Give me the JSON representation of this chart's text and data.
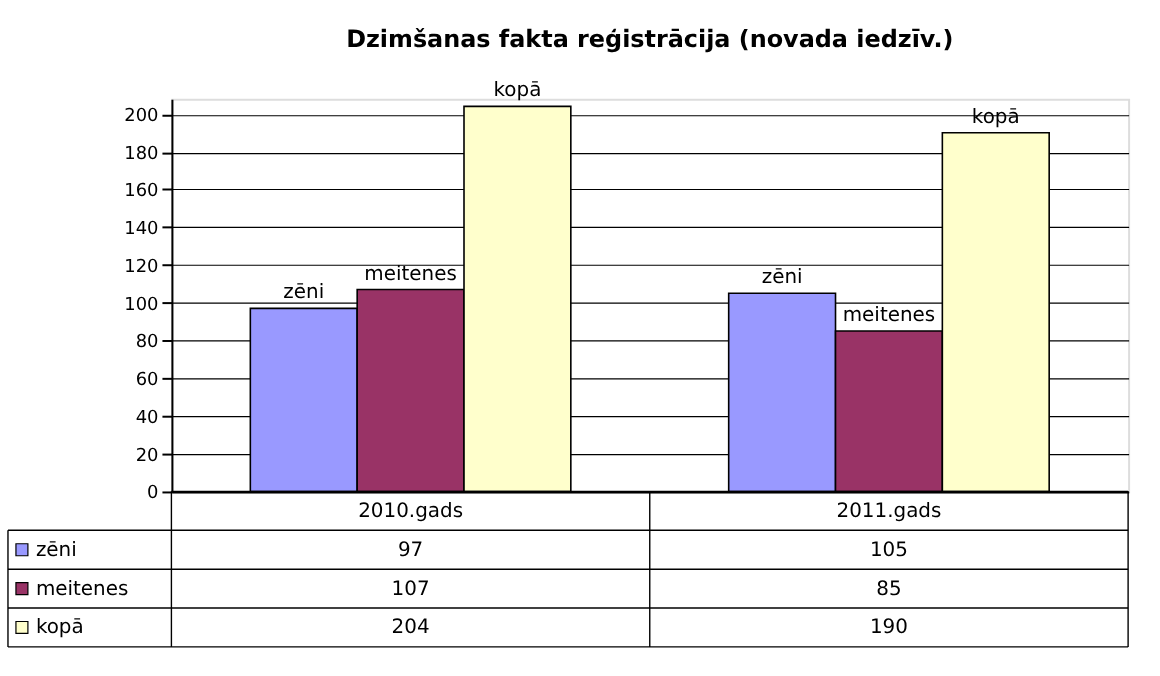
{
  "chart_data": {
    "type": "bar",
    "title": "Dzimšanas fakta reģistrācija (novada iedzīv.)",
    "categories": [
      "2010.gads",
      "2011.gads"
    ],
    "series": [
      {
        "name": "zēni",
        "color": "#9999ff",
        "values": [
          97,
          105
        ]
      },
      {
        "name": "meitenes",
        "color": "#993366",
        "values": [
          107,
          85
        ]
      },
      {
        "name": "kopā",
        "color": "#ffffcc",
        "values": [
          204,
          190
        ]
      }
    ],
    "ylim": [
      0,
      208
    ],
    "yticks": [
      0,
      20,
      40,
      60,
      80,
      100,
      120,
      140,
      160,
      180,
      200
    ],
    "grid": "y",
    "legend": "bottom",
    "data_labels": true
  }
}
